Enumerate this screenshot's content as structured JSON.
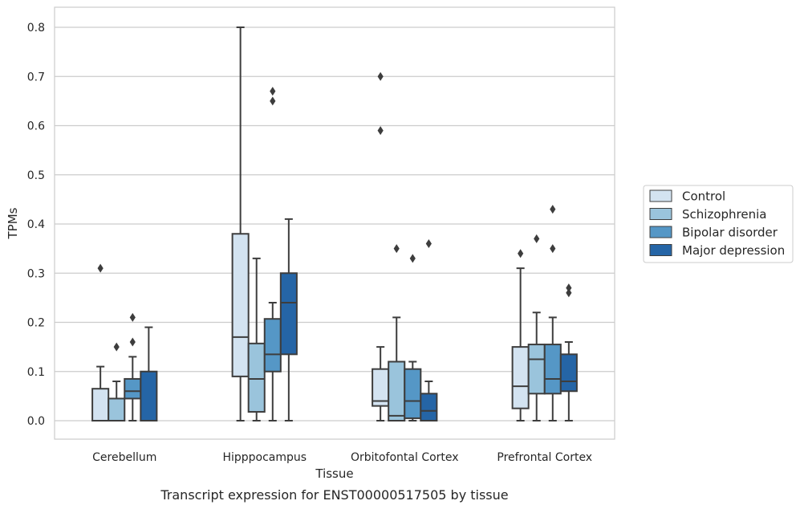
{
  "caption": "Transcript expression for ENST00000517505 by tissue",
  "chart_data": {
    "type": "box",
    "xlabel": "Tissue",
    "ylabel": "TPMs",
    "ylim": [
      -0.04,
      0.84
    ],
    "yticks": [
      0.0,
      0.1,
      0.2,
      0.3,
      0.4,
      0.5,
      0.6,
      0.7,
      0.8
    ],
    "ytick_labels": [
      "0.0",
      "0.1",
      "0.2",
      "0.3",
      "0.4",
      "0.5",
      "0.6",
      "0.7",
      "0.8"
    ],
    "grid": "horizontal",
    "legend_position": "right",
    "categories": [
      "Cerebellum",
      "Hipppocampus",
      "Orbitofontal Cortex",
      "Prefrontal Cortex"
    ],
    "series": [
      {
        "name": "Control",
        "color": "#d3e3f1",
        "boxes": [
          {
            "whislo": 0.0,
            "q1": 0.0,
            "med": 0.0,
            "q3": 0.065,
            "whishi": 0.11,
            "fliers": [
              0.31
            ]
          },
          {
            "whislo": 0.0,
            "q1": 0.09,
            "med": 0.17,
            "q3": 0.38,
            "whishi": 0.8,
            "fliers": []
          },
          {
            "whislo": 0.0,
            "q1": 0.03,
            "med": 0.04,
            "q3": 0.105,
            "whishi": 0.15,
            "fliers": [
              0.59,
              0.7
            ]
          },
          {
            "whislo": 0.0,
            "q1": 0.025,
            "med": 0.07,
            "q3": 0.15,
            "whishi": 0.31,
            "fliers": [
              0.34
            ]
          }
        ]
      },
      {
        "name": "Schizophrenia",
        "color": "#9ac4dc",
        "boxes": [
          {
            "whislo": 0.0,
            "q1": 0.0,
            "med": 0.0,
            "q3": 0.045,
            "whishi": 0.08,
            "fliers": [
              0.15
            ]
          },
          {
            "whislo": 0.0,
            "q1": 0.018,
            "med": 0.085,
            "q3": 0.157,
            "whishi": 0.33,
            "fliers": []
          },
          {
            "whislo": 0.0,
            "q1": 0.0,
            "med": 0.01,
            "q3": 0.12,
            "whishi": 0.21,
            "fliers": [
              0.35
            ]
          },
          {
            "whislo": 0.0,
            "q1": 0.055,
            "med": 0.125,
            "q3": 0.155,
            "whishi": 0.22,
            "fliers": [
              0.37
            ]
          }
        ]
      },
      {
        "name": "Bipolar disorder",
        "color": "#5597c6",
        "boxes": [
          {
            "whislo": 0.0,
            "q1": 0.045,
            "med": 0.06,
            "q3": 0.085,
            "whishi": 0.13,
            "fliers": [
              0.16,
              0.21
            ]
          },
          {
            "whislo": 0.0,
            "q1": 0.1,
            "med": 0.135,
            "q3": 0.207,
            "whishi": 0.24,
            "fliers": [
              0.65,
              0.67
            ]
          },
          {
            "whislo": 0.0,
            "q1": 0.005,
            "med": 0.04,
            "q3": 0.105,
            "whishi": 0.12,
            "fliers": [
              0.33
            ]
          },
          {
            "whislo": 0.0,
            "q1": 0.055,
            "med": 0.085,
            "q3": 0.155,
            "whishi": 0.21,
            "fliers": [
              0.35,
              0.43
            ]
          }
        ]
      },
      {
        "name": "Major depression",
        "color": "#2565a6",
        "boxes": [
          {
            "whislo": 0.0,
            "q1": 0.0,
            "med": 0.0,
            "q3": 0.1,
            "whishi": 0.19,
            "fliers": []
          },
          {
            "whislo": 0.0,
            "q1": 0.135,
            "med": 0.24,
            "q3": 0.3,
            "whishi": 0.41,
            "fliers": []
          },
          {
            "whislo": 0.0,
            "q1": 0.0,
            "med": 0.02,
            "q3": 0.055,
            "whishi": 0.08,
            "fliers": [
              0.36
            ]
          },
          {
            "whislo": 0.0,
            "q1": 0.06,
            "med": 0.08,
            "q3": 0.135,
            "whishi": 0.16,
            "fliers": [
              0.26,
              0.27
            ]
          }
        ]
      }
    ],
    "colors": {
      "grid": "#cccccc",
      "frame": "#cccccc",
      "edge": "#3d3d3d"
    }
  }
}
